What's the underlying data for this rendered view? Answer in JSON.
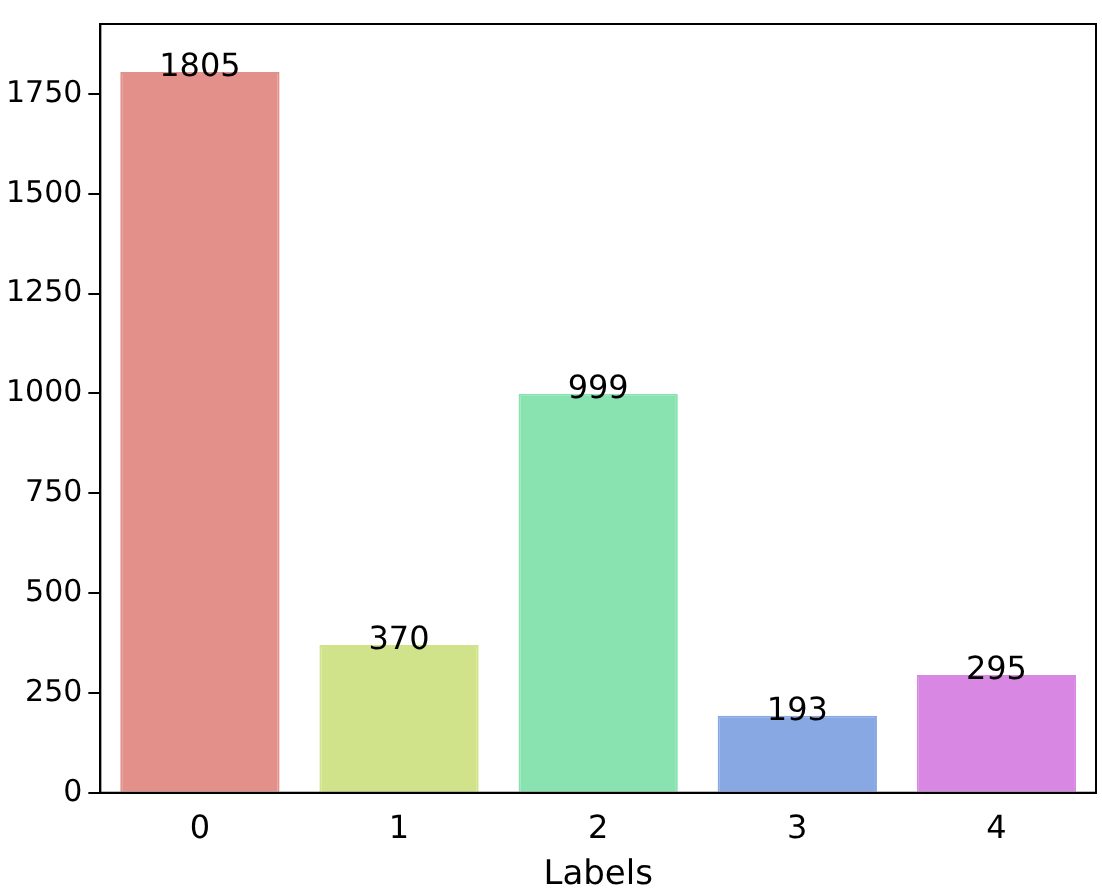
{
  "chart_data": {
    "type": "bar",
    "xlabel": "Labels",
    "categories": [
      "0",
      "1",
      "2",
      "3",
      "4"
    ],
    "values": [
      1805,
      370,
      999,
      193,
      295
    ],
    "colors": [
      "#e3908a",
      "#d1e38a",
      "#88e3b0",
      "#88a8e3",
      "#d888e3"
    ],
    "ylim": [
      0,
      1925
    ],
    "yticks": [
      0,
      250,
      500,
      750,
      1000,
      1250,
      1500,
      1750
    ],
    "data_labels": true,
    "grid": false,
    "legend": false
  }
}
